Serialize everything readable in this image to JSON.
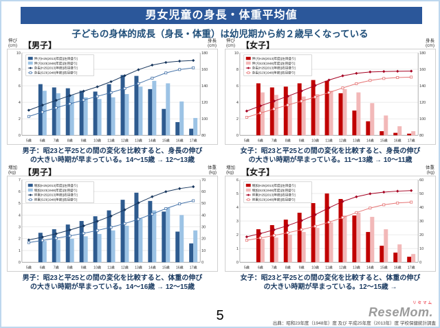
{
  "page": {
    "title": "男女児童の身長・体重平均値",
    "subtitle": "子どもの身体的成長（身長・体重）は幼児期から約２歳早くなっている",
    "page_number": "5",
    "source": "出典：昭和23年度（1948年）度 及び 平成25年度（2013年）度 学校保健統計調査",
    "logo_text": "ReseMom.",
    "logo_ruby": "リセマム"
  },
  "colors": {
    "title_bar": "#2B579A",
    "boys_bar_dark": "#2E5B8F",
    "boys_bar_light": "#9CC3E5",
    "boys_line_dark": "#17365D",
    "boys_line_mid": "#4472A8",
    "girls_bar_dark": "#C00000",
    "girls_bar_light": "#F2B8B8",
    "girls_line_dark": "#A50021",
    "girls_line_mid": "#E57373"
  },
  "chart_data": [
    {
      "id": "boys-height",
      "type": "bar+line",
      "section_label": "【男子】",
      "left_axis_label": "伸び\n(cm)",
      "right_axis_label": "身長\n(cm)",
      "categories": [
        "5歳",
        "6歳",
        "7歳",
        "8歳",
        "9歳",
        "10歳",
        "11歳",
        "12歳",
        "13歳",
        "14歳",
        "15歳",
        "16歳",
        "17歳"
      ],
      "left_ylim": [
        0,
        10
      ],
      "left_step": 2,
      "right_ylim": [
        80,
        180
      ],
      "right_step": 20,
      "legend": [
        "伸び(H25(2013)年度)[左目盛り]",
        "伸び(S23(1948)年度)[左目盛り]",
        "身長(H25(2013)年度)[右目盛り]",
        "身長(S23(1948)年度)[右目盛り]"
      ],
      "bar_series": [
        {
          "name": "伸び(H25(2013)年度)",
          "axis": "left",
          "color": "#2E5B8F",
          "values": [
            null,
            6.2,
            5.8,
            5.7,
            5.4,
            5.3,
            6.2,
            7.3,
            7.2,
            5.6,
            3.2,
            1.6,
            0.8
          ]
        },
        {
          "name": "伸び(S23(1948)年度)",
          "axis": "left",
          "color": "#9CC3E5",
          "values": [
            null,
            5.4,
            5.1,
            4.9,
            4.6,
            4.4,
            4.6,
            5.0,
            5.9,
            6.6,
            6.3,
            4.1,
            2.1
          ]
        }
      ],
      "line_series": [
        {
          "name": "身長(H25(2013)年度)",
          "axis": "right",
          "color": "#17365D",
          "marker": "diamond",
          "values": [
            110.4,
            116.6,
            122.4,
            128.1,
            133.5,
            138.8,
            145.0,
            152.3,
            159.5,
            165.1,
            168.3,
            169.9,
            170.7
          ]
        },
        {
          "name": "身長(S23(1948)年度)",
          "axis": "right",
          "color": "#4472A8",
          "marker": "square",
          "values": [
            102.8,
            108.2,
            113.3,
            118.2,
            122.8,
            127.2,
            131.8,
            136.8,
            142.7,
            149.3,
            155.6,
            159.7,
            161.8
          ]
        }
      ],
      "caption": "男子：昭23と平25との間の変化を比較すると、身長の伸び\nの大きい時期が早まっている。14〜15歳 → 12〜13歳"
    },
    {
      "id": "girls-height",
      "type": "bar+line",
      "section_label": "【女子】",
      "left_axis_label": "伸び\n(cm)",
      "right_axis_label": "身長\n(cm)",
      "categories": [
        "5歳",
        "6歳",
        "7歳",
        "8歳",
        "9歳",
        "10歳",
        "11歳",
        "12歳",
        "13歳",
        "14歳",
        "15歳",
        "16歳",
        "17歳"
      ],
      "left_ylim": [
        0,
        10
      ],
      "left_step": 2,
      "right_ylim": [
        80,
        180
      ],
      "right_step": 20,
      "legend": [
        "伸び(H25(2013)年度)[左目盛り]",
        "伸び(S23(1948)年度)[左目盛り]",
        "身長(H25(2013)年度)[右目盛り]",
        "身長(S23(1948)年度)[右目盛り]"
      ],
      "bar_series": [
        {
          "name": "伸び(H25(2013)年度)",
          "axis": "left",
          "color": "#C00000",
          "values": [
            null,
            6.3,
            5.8,
            5.9,
            6.3,
            6.7,
            6.6,
            5.1,
            3.0,
            1.7,
            0.5,
            0.3,
            0.2
          ]
        },
        {
          "name": "伸び(S23(1948)年度)",
          "axis": "left",
          "color": "#F2B8B8",
          "values": [
            null,
            5.2,
            4.9,
            4.8,
            4.7,
            5.0,
            5.4,
            5.6,
            5.2,
            3.9,
            2.4,
            1.1,
            0.5
          ]
        }
      ],
      "line_series": [
        {
          "name": "身長(H25(2013)年度)",
          "axis": "right",
          "color": "#A50021",
          "marker": "diamond",
          "values": [
            109.4,
            115.7,
            121.5,
            127.4,
            133.7,
            140.4,
            147.0,
            152.1,
            155.1,
            156.8,
            157.3,
            157.6,
            157.8
          ]
        },
        {
          "name": "身長(S23(1948)年度)",
          "axis": "right",
          "color": "#E57373",
          "marker": "square",
          "values": [
            101.8,
            107.0,
            111.9,
            116.7,
            121.4,
            126.4,
            131.8,
            137.4,
            142.6,
            146.5,
            148.9,
            150.0,
            150.5
          ]
        }
      ],
      "caption": "女子：昭23と平25との間の変化を比較すると、身長の伸び\nの大きい時期が早まっている。11〜13歳 → 10〜11歳"
    },
    {
      "id": "boys-weight",
      "type": "bar+line",
      "section_label": "【男子】",
      "left_axis_label": "増加\n(kg)",
      "right_axis_label": "体重\n(kg)",
      "categories": [
        "5歳",
        "6歳",
        "7歳",
        "8歳",
        "9歳",
        "10歳",
        "11歳",
        "12歳",
        "13歳",
        "14歳",
        "15歳",
        "16歳",
        "17歳"
      ],
      "left_ylim": [
        0,
        7
      ],
      "left_step": 1,
      "right_ylim": [
        0,
        70
      ],
      "right_step": 10,
      "legend": [
        "増加(H25(2013)年度)[左目盛り]",
        "増加(S23(1948)年度)[左目盛り]",
        "体重(H25(2013)年度)[右目盛り]",
        "体重(S23(1948)年度)[右目盛り]"
      ],
      "bar_series": [
        {
          "name": "増加(H25(2013)年度)",
          "axis": "left",
          "color": "#2E5B8F",
          "values": [
            null,
            2.5,
            2.8,
            3.2,
            3.5,
            3.9,
            4.4,
            5.3,
            5.9,
            5.2,
            4.3,
            2.6,
            1.6
          ]
        },
        {
          "name": "増加(S23(1948)年度)",
          "axis": "left",
          "color": "#9CC3E5",
          "values": [
            null,
            1.8,
            1.9,
            2.0,
            2.2,
            2.4,
            2.7,
            3.1,
            3.7,
            4.4,
            4.6,
            4.0,
            2.7
          ]
        }
      ],
      "line_series": [
        {
          "name": "体重(H25(2013)年度)",
          "axis": "right",
          "color": "#17365D",
          "marker": "diamond",
          "values": [
            18.9,
            21.4,
            24.2,
            27.4,
            30.9,
            34.8,
            39.2,
            44.5,
            50.4,
            55.6,
            59.9,
            62.5,
            64.1
          ]
        },
        {
          "name": "体重(S23(1948)年度)",
          "axis": "right",
          "color": "#4472A8",
          "marker": "square",
          "values": [
            16.7,
            18.5,
            20.4,
            22.4,
            24.6,
            27.0,
            29.7,
            32.8,
            36.5,
            40.9,
            45.5,
            49.5,
            52.2
          ]
        }
      ],
      "caption": "男子：昭23と平25との間の変化を比較すると、体重の伸び\nの大きい時期が早まっている。14〜16歳 → 12〜15歳"
    },
    {
      "id": "girls-weight",
      "type": "bar+line",
      "section_label": "【女子】",
      "left_axis_label": "増加\n(kg)",
      "right_axis_label": "体重\n(kg)",
      "categories": [
        "5歳",
        "6歳",
        "7歳",
        "8歳",
        "9歳",
        "10歳",
        "11歳",
        "12歳",
        "13歳",
        "14歳",
        "15歳",
        "16歳",
        "17歳"
      ],
      "left_ylim": [
        0,
        6
      ],
      "left_step": 1,
      "right_ylim": [
        0,
        60
      ],
      "right_step": 10,
      "legend": [
        "増加(H25(2013)年度)[左目盛り]",
        "増加(S23(1948)年度)[左目盛り]",
        "体重(H25(2013)年度)[右目盛り]",
        "体重(S23(1948)年度)[右目盛り]"
      ],
      "bar_series": [
        {
          "name": "増加(H25(2013)年度)",
          "axis": "left",
          "color": "#C00000",
          "values": [
            null,
            2.4,
            2.7,
            3.1,
            3.6,
            4.3,
            5.0,
            4.6,
            3.4,
            2.2,
            1.2,
            0.7,
            0.4
          ]
        },
        {
          "name": "増加(S23(1948)年度)",
          "axis": "left",
          "color": "#F2B8B8",
          "values": [
            null,
            1.7,
            1.8,
            2.0,
            2.2,
            2.5,
            2.9,
            3.4,
            3.6,
            3.3,
            2.4,
            1.3,
            0.6
          ]
        }
      ],
      "line_series": [
        {
          "name": "体重(H25(2013)年度)",
          "axis": "right",
          "color": "#A50021",
          "marker": "diamond",
          "values": [
            18.5,
            20.9,
            23.6,
            26.7,
            30.3,
            34.6,
            39.6,
            44.2,
            47.6,
            49.8,
            51.0,
            51.7,
            52.1
          ]
        },
        {
          "name": "体重(S23(1948)年度)",
          "axis": "right",
          "color": "#E57373",
          "marker": "square",
          "values": [
            16.0,
            17.7,
            19.5,
            21.5,
            23.7,
            26.2,
            29.1,
            32.5,
            36.1,
            39.4,
            41.8,
            43.1,
            43.7
          ]
        }
      ],
      "caption": "女子：昭23と平25との間の変化を比較すると、体重の伸び\nの大きい時期が早まっている。12〜15歳 →"
    }
  ]
}
